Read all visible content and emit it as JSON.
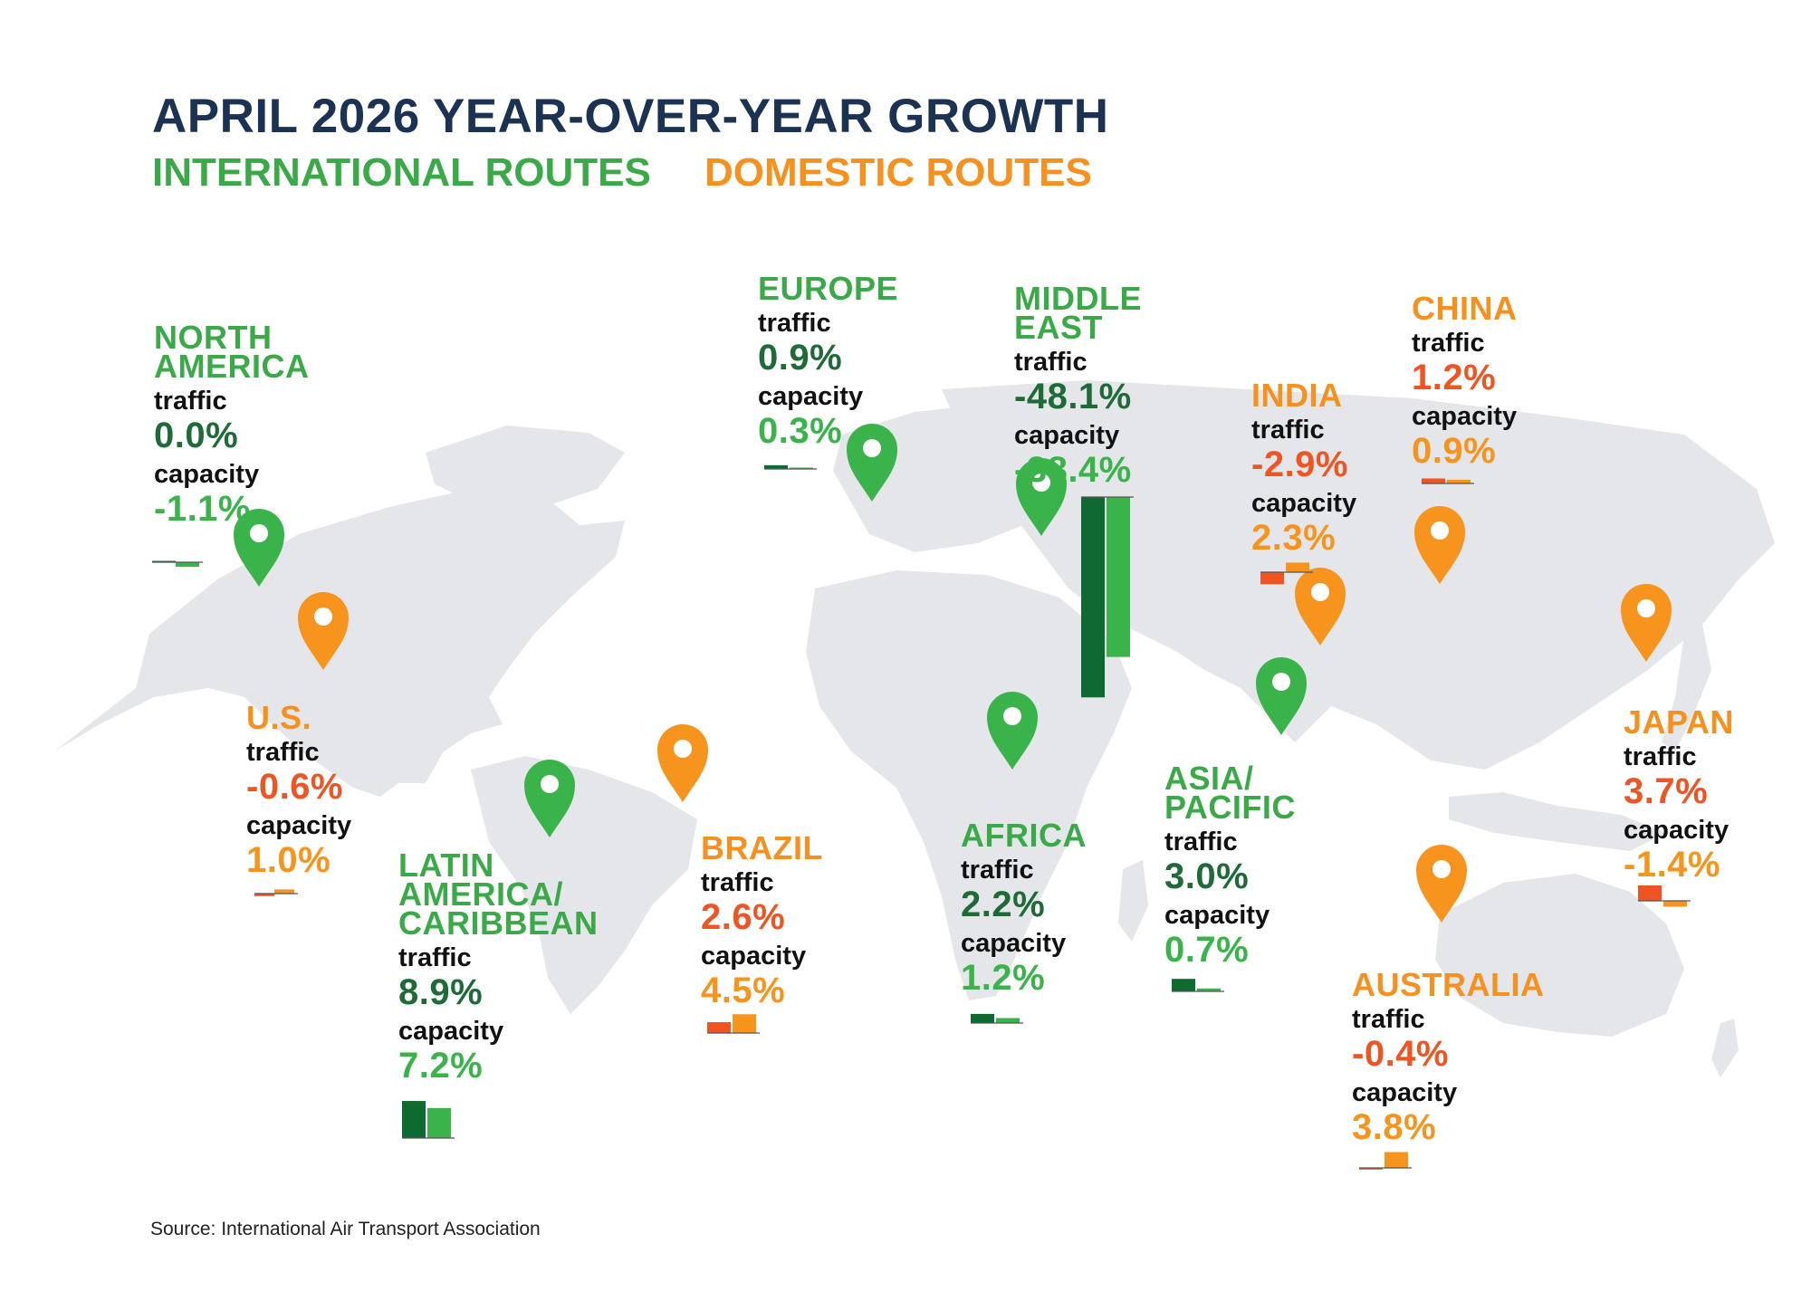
{
  "title": "APRIL 2026 YEAR-OVER-YEAR GROWTH",
  "legend": {
    "international": "INTERNATIONAL ROUTES",
    "domestic": "DOMESTIC ROUTES"
  },
  "source": "Source: International Air Transport Association",
  "colors": {
    "title": "#1b3252",
    "intl_name": "#3aaa48",
    "intl_traffic": "#1e6b38",
    "intl_capacity": "#3ab44a",
    "intl_bar_traffic": "#0f6a32",
    "intl_bar_capacity": "#3ab44a",
    "dom_name": "#f6901e",
    "dom_traffic": "#ef5423",
    "dom_capacity": "#f7941d",
    "dom_bar_traffic": "#ef5423",
    "dom_bar_capacity": "#f7941d",
    "map": "#e4e6ea"
  },
  "icons": {
    "pin": "map-pin-icon"
  },
  "chart_data": {
    "type": "bar",
    "title": "APRIL 2026 YEAR-OVER-YEAR GROWTH",
    "unit": "%",
    "series_labels": [
      "traffic",
      "capacity"
    ],
    "regions": [
      {
        "id": "north-america",
        "name": [
          "NORTH",
          "AMERICA"
        ],
        "kind": "international",
        "traffic": 0.0,
        "capacity": -1.1,
        "traffic_label": "0.0%",
        "capacity_label": "-1.1%"
      },
      {
        "id": "us",
        "name": [
          "U.S."
        ],
        "kind": "domestic",
        "traffic": -0.6,
        "capacity": 1.0,
        "traffic_label": "-0.6%",
        "capacity_label": "1.0%"
      },
      {
        "id": "latin-america",
        "name": [
          "LATIN",
          "AMERICA/",
          "CARIBBEAN"
        ],
        "kind": "international",
        "traffic": 8.9,
        "capacity": 7.2,
        "traffic_label": "8.9%",
        "capacity_label": "7.2%"
      },
      {
        "id": "brazil",
        "name": [
          "BRAZIL"
        ],
        "kind": "domestic",
        "traffic": 2.6,
        "capacity": 4.5,
        "traffic_label": "2.6%",
        "capacity_label": "4.5%"
      },
      {
        "id": "europe",
        "name": [
          "EUROPE"
        ],
        "kind": "international",
        "traffic": 0.9,
        "capacity": 0.3,
        "traffic_label": "0.9%",
        "capacity_label": "0.3%"
      },
      {
        "id": "middle-east",
        "name": [
          "MIDDLE",
          "EAST"
        ],
        "kind": "international",
        "traffic": -48.1,
        "capacity": -38.4,
        "traffic_label": "-48.1%",
        "capacity_label": "-38.4%"
      },
      {
        "id": "africa",
        "name": [
          "AFRICA"
        ],
        "kind": "international",
        "traffic": 2.2,
        "capacity": 1.2,
        "traffic_label": "2.2%",
        "capacity_label": "1.2%"
      },
      {
        "id": "india",
        "name": [
          "INDIA"
        ],
        "kind": "domestic",
        "traffic": -2.9,
        "capacity": 2.3,
        "traffic_label": "-2.9%",
        "capacity_label": "2.3%"
      },
      {
        "id": "china",
        "name": [
          "CHINA"
        ],
        "kind": "domestic",
        "traffic": 1.2,
        "capacity": 0.9,
        "traffic_label": "1.2%",
        "capacity_label": "0.9%"
      },
      {
        "id": "asia-pacific",
        "name": [
          "ASIA/",
          "PACIFIC"
        ],
        "kind": "international",
        "traffic": 3.0,
        "capacity": 0.7,
        "traffic_label": "3.0%",
        "capacity_label": "0.7%"
      },
      {
        "id": "japan",
        "name": [
          "JAPAN"
        ],
        "kind": "domestic",
        "traffic": 3.7,
        "capacity": -1.4,
        "traffic_label": "3.7%",
        "capacity_label": "-1.4%"
      },
      {
        "id": "australia",
        "name": [
          "AUSTRALIA"
        ],
        "kind": "domestic",
        "traffic": -0.4,
        "capacity": 3.8,
        "traffic_label": "-0.4%",
        "capacity_label": "3.8%"
      }
    ]
  }
}
